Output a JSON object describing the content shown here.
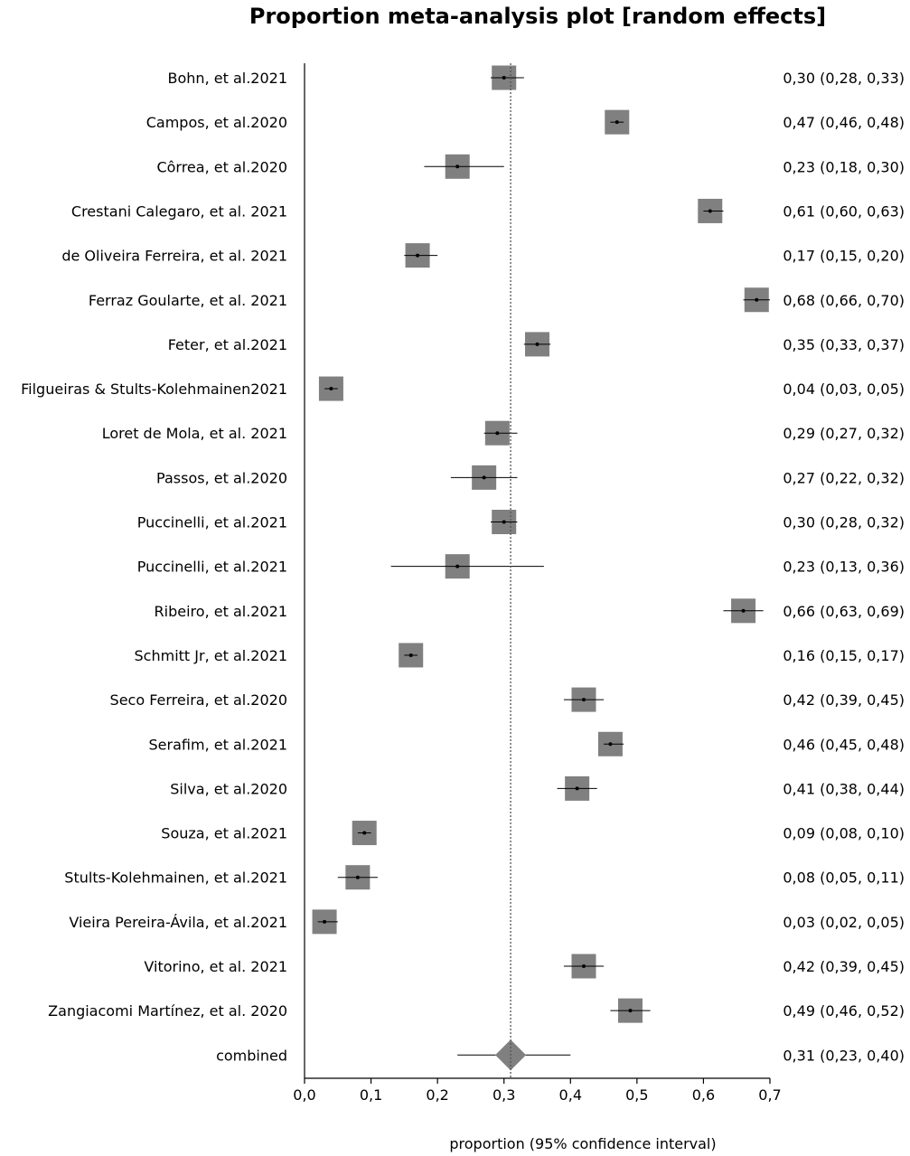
{
  "chart_data": {
    "type": "forest",
    "title": "Proportion meta-analysis plot [random effects]",
    "xlabel": "proportion (95% confidence interval)",
    "xlim": [
      0,
      0.7
    ],
    "xticks": [
      0,
      0.1,
      0.2,
      0.3,
      0.4,
      0.5,
      0.6,
      0.7
    ],
    "xtick_labels": [
      "0,0",
      "0,1",
      "0,2",
      "0,3",
      "0,4",
      "0,5",
      "0,6",
      "0,7"
    ],
    "reference_line": 0.31,
    "studies": [
      {
        "label": "Bohn, et al.2021",
        "estimate": 0.3,
        "lower": 0.28,
        "upper": 0.33,
        "ci_text": "0,30 (0,28, 0,33)"
      },
      {
        "label": "Campos, et al.2020",
        "estimate": 0.47,
        "lower": 0.46,
        "upper": 0.48,
        "ci_text": "0,47 (0,46, 0,48)"
      },
      {
        "label": "Côrrea, et al.2020",
        "estimate": 0.23,
        "lower": 0.18,
        "upper": 0.3,
        "ci_text": "0,23 (0,18, 0,30)"
      },
      {
        "label": "Crestani Calegaro, et al. 2021",
        "estimate": 0.61,
        "lower": 0.6,
        "upper": 0.63,
        "ci_text": "0,61 (0,60, 0,63)"
      },
      {
        "label": "de Oliveira Ferreira, et al. 2021",
        "estimate": 0.17,
        "lower": 0.15,
        "upper": 0.2,
        "ci_text": "0,17 (0,15, 0,20)"
      },
      {
        "label": "Ferraz Goularte, et al. 2021",
        "estimate": 0.68,
        "lower": 0.66,
        "upper": 0.7,
        "ci_text": "0,68 (0,66, 0,70)"
      },
      {
        "label": "Feter, et al.2021",
        "estimate": 0.35,
        "lower": 0.33,
        "upper": 0.37,
        "ci_text": "0,35 (0,33, 0,37)"
      },
      {
        "label": "Filgueiras & Stults-Kolehmainen2021",
        "estimate": 0.04,
        "lower": 0.03,
        "upper": 0.05,
        "ci_text": "0,04 (0,03, 0,05)"
      },
      {
        "label": "Loret de Mola, et al. 2021",
        "estimate": 0.29,
        "lower": 0.27,
        "upper": 0.32,
        "ci_text": "0,29 (0,27, 0,32)"
      },
      {
        "label": "Passos, et al.2020",
        "estimate": 0.27,
        "lower": 0.22,
        "upper": 0.32,
        "ci_text": "0,27 (0,22, 0,32)"
      },
      {
        "label": "Puccinelli, et al.2021",
        "estimate": 0.3,
        "lower": 0.28,
        "upper": 0.32,
        "ci_text": "0,30 (0,28, 0,32)"
      },
      {
        "label": "Puccinelli, et al.2021",
        "estimate": 0.23,
        "lower": 0.13,
        "upper": 0.36,
        "ci_text": "0,23 (0,13, 0,36)"
      },
      {
        "label": "Ribeiro, et al.2021",
        "estimate": 0.66,
        "lower": 0.63,
        "upper": 0.69,
        "ci_text": "0,66 (0,63, 0,69)"
      },
      {
        "label": "Schmitt Jr, et al.2021",
        "estimate": 0.16,
        "lower": 0.15,
        "upper": 0.17,
        "ci_text": "0,16 (0,15, 0,17)"
      },
      {
        "label": "Seco Ferreira, et al.2020",
        "estimate": 0.42,
        "lower": 0.39,
        "upper": 0.45,
        "ci_text": "0,42 (0,39, 0,45)"
      },
      {
        "label": "Serafim, et al.2021",
        "estimate": 0.46,
        "lower": 0.45,
        "upper": 0.48,
        "ci_text": "0,46 (0,45, 0,48)"
      },
      {
        "label": "Silva, et al.2020",
        "estimate": 0.41,
        "lower": 0.38,
        "upper": 0.44,
        "ci_text": "0,41 (0,38, 0,44)"
      },
      {
        "label": "Souza, et al.2021",
        "estimate": 0.09,
        "lower": 0.08,
        "upper": 0.1,
        "ci_text": "0,09 (0,08, 0,10)"
      },
      {
        "label": "Stults-Kolehmainen, et al.2021",
        "estimate": 0.08,
        "lower": 0.05,
        "upper": 0.11,
        "ci_text": "0,08 (0,05, 0,11)"
      },
      {
        "label": "Vieira Pereira-Ávila, et al.2021",
        "estimate": 0.03,
        "lower": 0.02,
        "upper": 0.05,
        "ci_text": "0,03 (0,02, 0,05)"
      },
      {
        "label": "Vitorino, et al. 2021",
        "estimate": 0.42,
        "lower": 0.39,
        "upper": 0.45,
        "ci_text": "0,42 (0,39, 0,45)"
      },
      {
        "label": "Zangiacomi Martínez, et al. 2020",
        "estimate": 0.49,
        "lower": 0.46,
        "upper": 0.52,
        "ci_text": "0,49 (0,46, 0,52)"
      }
    ],
    "combined": {
      "label": "combined",
      "estimate": 0.31,
      "lower": 0.23,
      "upper": 0.4,
      "ci_text": "0,31 (0,23, 0,40)"
    },
    "colors": {
      "box": "#808080",
      "line": "#000000"
    }
  }
}
